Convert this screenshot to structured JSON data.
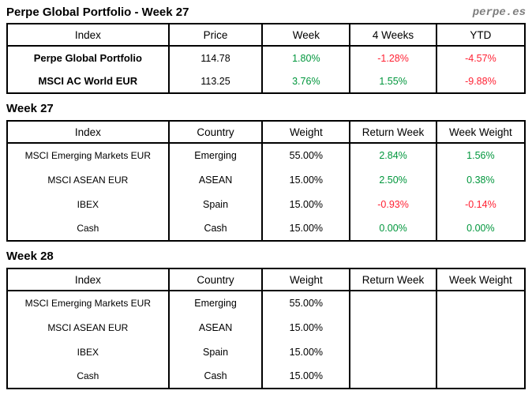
{
  "page": {
    "title": "Perpe Global Portfolio - Week 27",
    "brand": "perpe.es"
  },
  "colors": {
    "positive": "#00963c",
    "negative": "#ff2133",
    "brand_gray": "#7d7d7d",
    "border": "#000000"
  },
  "summary": {
    "headers": [
      "Index",
      "Price",
      "Week",
      "4 Weeks",
      "YTD"
    ],
    "rows": [
      {
        "cells": [
          "Perpe Global Portfolio",
          "114.78",
          "1.80%",
          "-1.28%",
          "-4.57%"
        ],
        "signs": [
          "",
          "",
          "pos",
          "neg",
          "neg"
        ]
      },
      {
        "cells": [
          "MSCI AC World EUR",
          "113.25",
          "3.76%",
          "1.55%",
          "-9.88%"
        ],
        "signs": [
          "",
          "",
          "pos",
          "pos",
          "neg"
        ]
      }
    ]
  },
  "week27": {
    "heading": "Week 27",
    "headers": [
      "Index",
      "Country",
      "Weight",
      "Return Week",
      "Week Weight"
    ],
    "rows": [
      {
        "cells": [
          "MSCI Emerging Markets EUR",
          "Emerging",
          "55.00%",
          "2.84%",
          "1.56%"
        ],
        "signs": [
          "",
          "",
          "",
          "pos",
          "pos"
        ]
      },
      {
        "cells": [
          "MSCI ASEAN EUR",
          "ASEAN",
          "15.00%",
          "2.50%",
          "0.38%"
        ],
        "signs": [
          "",
          "",
          "",
          "pos",
          "pos"
        ]
      },
      {
        "cells": [
          "IBEX",
          "Spain",
          "15.00%",
          "-0.93%",
          "-0.14%"
        ],
        "signs": [
          "",
          "",
          "",
          "neg",
          "neg"
        ]
      },
      {
        "cells": [
          "Cash",
          "Cash",
          "15.00%",
          "0.00%",
          "0.00%"
        ],
        "signs": [
          "",
          "",
          "",
          "pos",
          "pos"
        ]
      }
    ]
  },
  "week28": {
    "heading": "Week 28",
    "headers": [
      "Index",
      "Country",
      "Weight",
      "Return Week",
      "Week Weight"
    ],
    "rows": [
      {
        "cells": [
          "MSCI Emerging Markets EUR",
          "Emerging",
          "55.00%",
          "",
          ""
        ],
        "signs": [
          "",
          "",
          "",
          "",
          ""
        ]
      },
      {
        "cells": [
          "MSCI ASEAN EUR",
          "ASEAN",
          "15.00%",
          "",
          ""
        ],
        "signs": [
          "",
          "",
          "",
          "",
          ""
        ]
      },
      {
        "cells": [
          "IBEX",
          "Spain",
          "15.00%",
          "",
          ""
        ],
        "signs": [
          "",
          "",
          "",
          "",
          ""
        ]
      },
      {
        "cells": [
          "Cash",
          "Cash",
          "15.00%",
          "",
          ""
        ],
        "signs": [
          "",
          "",
          "",
          "",
          ""
        ]
      }
    ]
  }
}
